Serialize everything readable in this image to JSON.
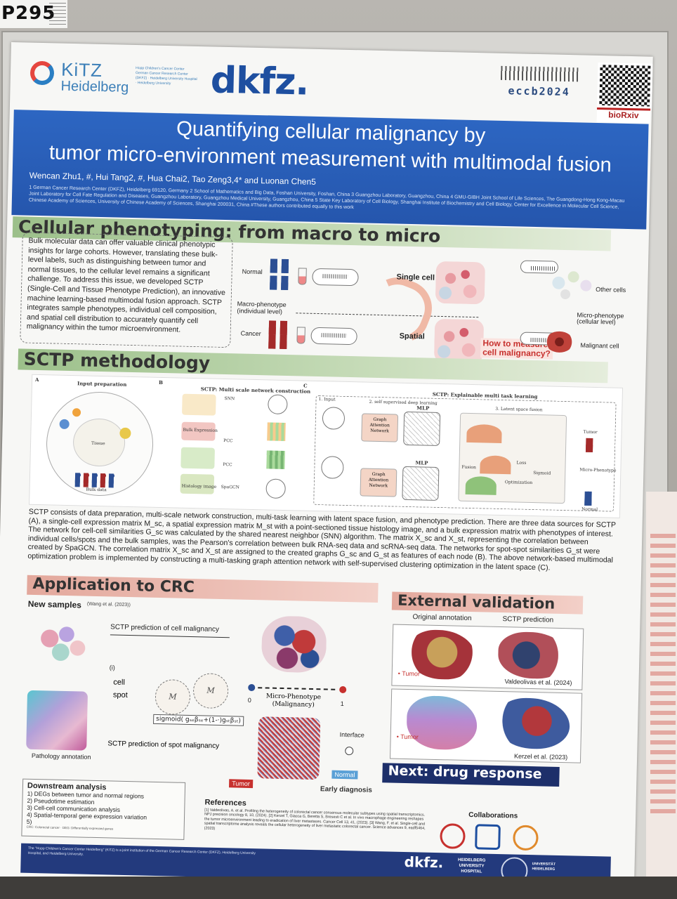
{
  "board_label": "P295",
  "header": {
    "kitz_name": "KiTZ",
    "kitz_city": "Heidelberg",
    "kitz_tagline": "Hopp Children's Cancer Center",
    "kitz_note": "German Cancer Research Center (DKFZ) · Heidelberg University Hospital · Heidelberg University",
    "dkfz_logo": "dkfz.",
    "conference": "eccb2024",
    "preprint": "bioRxiv"
  },
  "banner": {
    "title_line1": "Quantifying cellular malignancy by",
    "title_line2": "tumor micro-environment measurement with multimodal fusion",
    "authors": "Wencan Zhu1, #, Hui Tang2, #, Hua Chai2, Tao Zeng3,4* and Luonan Chen5",
    "affiliations": "1 German Cancer Research Center (DKFZ), Heidelberg 69120, Germany 2 School of Mathematics and Big Data, Foshan University, Foshan, China 3 Guangzhou Laboratory, Guangzhou, China 4 GMU-GIBH Joint School of Life Sciences, The Guangdong-Hong Kong-Macau Joint Laboratory for Cell Fate Regulation and Diseases, Guangzhou Laboratory, Guangzhou Medical University, Guangzhou, China 5 State Key Laboratory of Cell Biology, Shanghai Institute of Biochemistry and Cell Biology, Center for Excellence in Molecular Cell Science, Chinese Academy of Sciences, University of Chinese Academy of Sciences, Shanghai 200031, China #These authors contributed equally to this work"
  },
  "section1": {
    "heading": "Cellular phenotyping: from macro to micro",
    "intro": "Bulk molecular data can offer valuable clinical phenotypic insights for large cohorts. However, translating these bulk-level labels, such as distinguishing between tumor and normal tissues, to the cellular level remains a significant challenge. To address this issue, we developed SCTP (Single-Cell and Tissue Phenotype Prediction), an innovative machine learning-based multimodal fusion approach. SCTP integrates sample phenotypes, individual cell composition, and spatial cell distribution to accurately quantify cell malignancy within the tumor microenvironment.",
    "fig": {
      "normal": "Normal",
      "cancer": "Cancer",
      "macro": "Macro-phenotype\n(individual level)",
      "single_cell": "Single cell",
      "spatial": "Spatial",
      "question": "How to measure\ncell malignancy?",
      "micro": "Micro-phenotype\n(cellular level)",
      "other_cells": "Other cells",
      "malignant": "Malignant cell"
    }
  },
  "section2": {
    "heading": "SCTP methodology",
    "fig": {
      "label_a": "A",
      "label_b": "B",
      "label_c": "C",
      "input_prep": "Input preparation",
      "multi_scale": "SCTP: Multi scale network construction",
      "explainable": "SCTP: Explainable multi task learning",
      "input": "1. Input",
      "self_supervised": "2. self supervised deep learning",
      "latent": "3. Latent space fusion",
      "gat": "Graph\nAttention\nNetwork",
      "mlp": "MLP",
      "bulk_data": "Bulk data",
      "tissue": "Tissue",
      "bulk_expression": "Bulk Expression",
      "spatial_tx": "Spatial transcriptomics",
      "histology": "Histology image",
      "snn": "SNN",
      "pcc": "PCC",
      "spagcn": "SpaGCN",
      "fusion": "Fusion",
      "optimization": "Optimization",
      "tumor": "Tumor",
      "normal": "Normal",
      "micro_phenotype": "Micro-Phenotype",
      "sigmoid": "Sigmoid",
      "loss": "Loss"
    },
    "text": "SCTP consists of data preparation, multi-scale network construction, multi-task learning with latent space fusion, and phenotype prediction. There are three data sources for SCTP (A), a single-cell expression matrix M_sc, a spatial expression matrix M_st with a point-sectioned tissue histology image, and a bulk expression matrix with phenotypes of interest. The network for cell-cell similarities G_sc was calculated by the shared nearest neighbor (SNN) algorithm. The matrix X_sc and X_st, representing the correlation between individual cells/spots and the bulk samples, was the Pearson's correlation between bulk RNA-seq data and scRNA-seq data. The networks for spot-spot similarities G_st were created by SpaGCN. The correlation matrix X_sc and X_st are assigned to the created graphs G_sc and G_st as features of each node (B). The above network-based multimodal optimization problem is implemented by constructing a multi-tasking graph attention network with self-supervised clustering optimization in the latent space (C)."
  },
  "section3": {
    "heading": "Application to CRC",
    "new_samples": "New samples",
    "new_samples_ref": "(Wang et al. (2023))",
    "pred_cell": "SCTP prediction of cell malignancy",
    "pred_spot": "SCTP prediction of spot malignancy",
    "cell": "cell",
    "spot": "spot",
    "roman": "(i)",
    "micro_pheno": "Micro-Phenotype\n(Malignancy)",
    "scale_min": "0",
    "scale_max": "1",
    "formula": "sigmoid( gₛₑβₛₑ+(1-·)gₛₜβₛₜ)",
    "interface": "Interface",
    "normal": "Normal",
    "tumor": "Tumor",
    "early": "Early diagnosis",
    "pathology": "Pathology annotation"
  },
  "section4": {
    "heading": "External validation",
    "orig": "Original annotation",
    "sctp": "SCTP prediction",
    "tumor1": "• Tumor",
    "tumor2": "• Tumor",
    "cite1": "Valdeolivas et al. (2024)",
    "cite2": "Kerzel et al. (2023)"
  },
  "next": "Next: drug response",
  "downstream": {
    "title": "Downstream analysis",
    "items": [
      "1)   DEGs between tumor and normal regions",
      "2)   Pseudotime estimation",
      "3)   Cell-cell communication analysis",
      "4)   Spatial-temporal gene expression variation",
      "5)"
    ],
    "note": "CRC: Colorectal cancer · DEG: Differentially expressed genes"
  },
  "references": {
    "title": "References",
    "text": "[1] Valdeolivas, A. et al. Profiling the heterogeneity of colorectal cancer consensus molecular subtypes using spatial transcriptomics. NPJ precision oncology 8, 10, (2024). [2] Kerzel T, Giacca G, Beretta S, Bresesti C et al. In vivo macrophage engineering reshapes the tumor microenvironment leading to eradication of liver metastases. Cancer Cell 13, 41, (2023). [3] Wang, F. et al. Single-cell and spatial transcriptome analysis reveals the cellular heterogeneity of liver metastatic colorectal cancer. Science advances 9, eadf5464, (2023)"
  },
  "collaborations": "Collaborations",
  "footer": {
    "text": "The \"Hopp Children's Cancer Center Heidelberg\" (KiTZ) is a joint institution of the German Cancer Research Center (DKFZ), Heidelberg University Hospital, and Heidelberg University.",
    "dkfz": "dkfz.",
    "hd": "HEIDELBERG UNIVERSITY HOSPITAL",
    "seal_text": "UNIVERSITÄT HEIDELBERG"
  },
  "colors": {
    "banner_blue": "#2556ad",
    "section_green": "#9cc08a",
    "section_red": "#e3a89c",
    "navy": "#1d2f6a",
    "tumor_red": "#c7312e",
    "normal_blue": "#2c4f94"
  }
}
